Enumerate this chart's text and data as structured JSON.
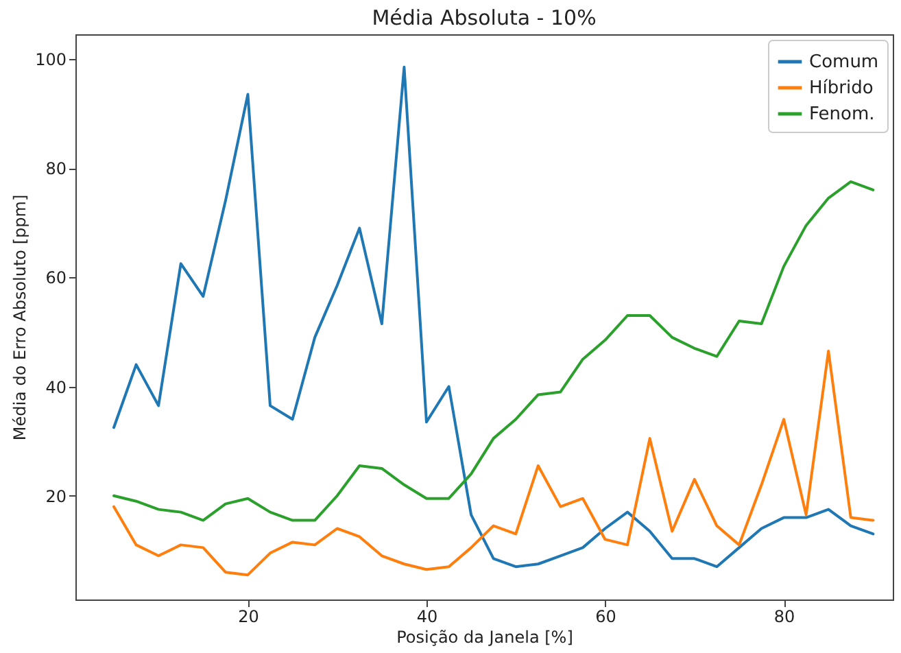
{
  "chart_data": {
    "type": "line",
    "title": "Média Absoluta - 10%",
    "xlabel": "Posição da Janela [%]",
    "ylabel": "Média do Erro Absoluto [ppm]",
    "x": [
      5,
      7.5,
      10,
      12.5,
      15,
      17.5,
      20,
      22.5,
      25,
      27.5,
      30,
      32.5,
      35,
      37.5,
      40,
      42.5,
      45,
      47.5,
      50,
      52.5,
      55,
      57.5,
      60,
      62.5,
      65,
      67.5,
      70,
      72.5,
      75,
      77.5,
      80,
      82.5,
      85,
      87.5,
      90
    ],
    "series": [
      {
        "name": "Comum",
        "color": "#1f77b4",
        "values": [
          32.5,
          44,
          36.5,
          62.5,
          56.5,
          74,
          93.5,
          36.5,
          34,
          49,
          58.5,
          69,
          51.5,
          98.5,
          33.5,
          40,
          16.5,
          8.5,
          7,
          7.5,
          9,
          10.5,
          14,
          17,
          13.5,
          8.5,
          8.5,
          7,
          10.5,
          14,
          16,
          16,
          17.5,
          14.5,
          13
        ]
      },
      {
        "name": "Híbrido",
        "color": "#ff7f0e",
        "values": [
          18,
          11,
          9,
          11,
          10.5,
          6,
          5.5,
          9.5,
          11.5,
          11,
          14,
          12.5,
          9,
          7.5,
          6.5,
          7,
          10.5,
          14.5,
          13,
          25.5,
          18,
          19.5,
          12,
          11,
          30.5,
          13.5,
          23,
          14.5,
          11,
          22,
          34,
          16.5,
          46.5,
          16,
          15.5
        ]
      },
      {
        "name": "Fenom.",
        "color": "#2ca02c",
        "values": [
          20,
          19,
          17.5,
          17,
          15.5,
          18.5,
          19.5,
          17,
          15.5,
          15.5,
          20,
          25.5,
          25,
          22,
          19.5,
          19.5,
          24,
          30.5,
          34,
          38.5,
          39,
          45,
          48.5,
          53,
          53,
          49,
          47,
          45.5,
          52,
          51.5,
          62,
          69.5,
          74.5,
          77.5,
          76
        ]
      }
    ],
    "xlim": [
      0.7,
      92.2
    ],
    "xticks": [
      20,
      40,
      60,
      80
    ],
    "ylim": [
      1,
      104.5
    ],
    "yticks": [
      20,
      40,
      60,
      80,
      100
    ],
    "grid": false,
    "legend": "top right",
    "marker": "none",
    "line_style": "solid"
  }
}
